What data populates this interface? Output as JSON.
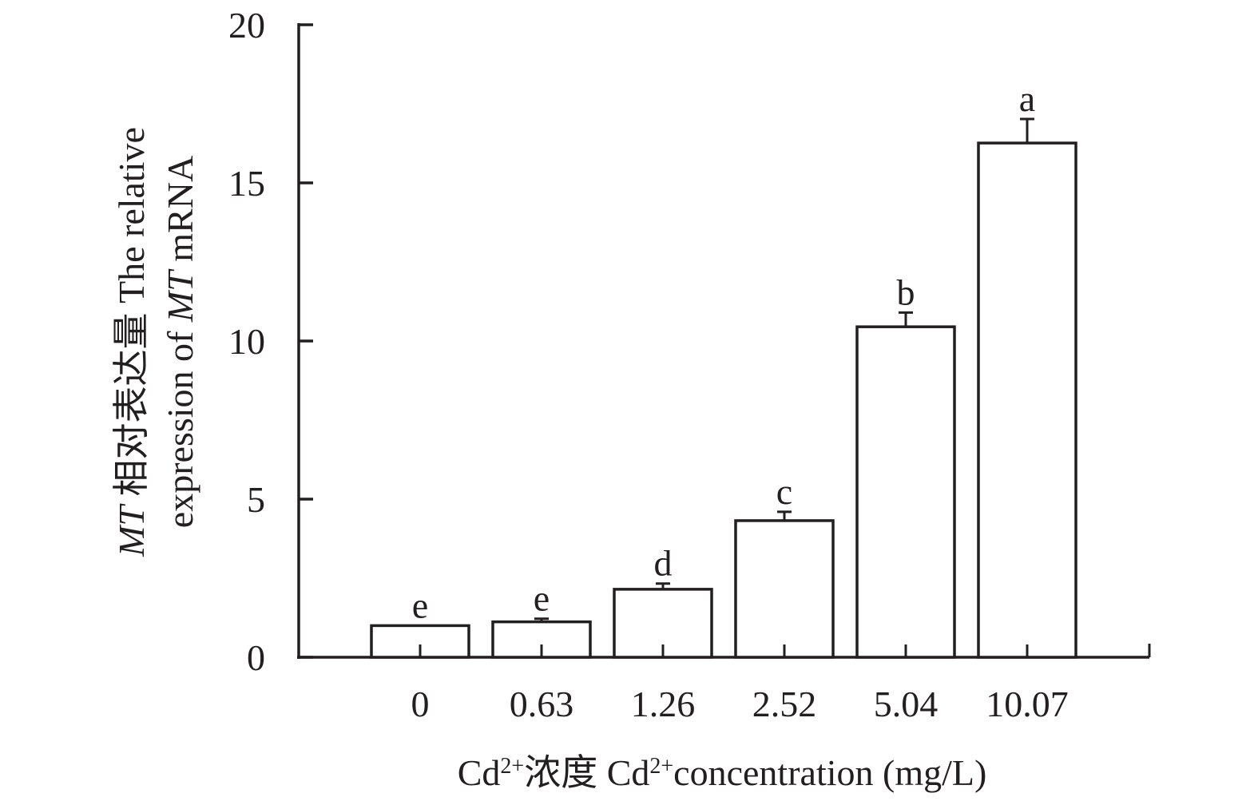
{
  "chart_data": {
    "type": "bar",
    "title": "",
    "categories": [
      "0",
      "0.63",
      "1.26",
      "2.52",
      "5.04",
      "10.07"
    ],
    "values": [
      1.0,
      1.12,
      2.15,
      4.32,
      10.45,
      16.26
    ],
    "error": [
      0.0,
      0.1,
      0.18,
      0.28,
      0.45,
      0.76
    ],
    "significance": [
      "e",
      "e",
      "d",
      "c",
      "b",
      "a"
    ],
    "ylim": [
      0,
      20
    ],
    "yticks": [
      "0",
      "5",
      "10",
      "15",
      "20"
    ],
    "ytick_values": [
      0,
      5,
      10,
      15,
      20
    ],
    "ylabel": {
      "line1_italic": "MT",
      "line1_rest": " 相对表达量 The relative",
      "line2_start": "expression of ",
      "line2_italic": "MT",
      "line2_end": " mRNA"
    },
    "xlabel": {
      "part1": "Cd",
      "sup1": "2+",
      "part2": "浓度 Cd",
      "sup2": "2+",
      "part3": "concentration (mg/L)"
    },
    "grid": false,
    "legend": "none",
    "colors": {
      "bar_fill": "#ffffff",
      "stroke": "#231f20"
    }
  }
}
